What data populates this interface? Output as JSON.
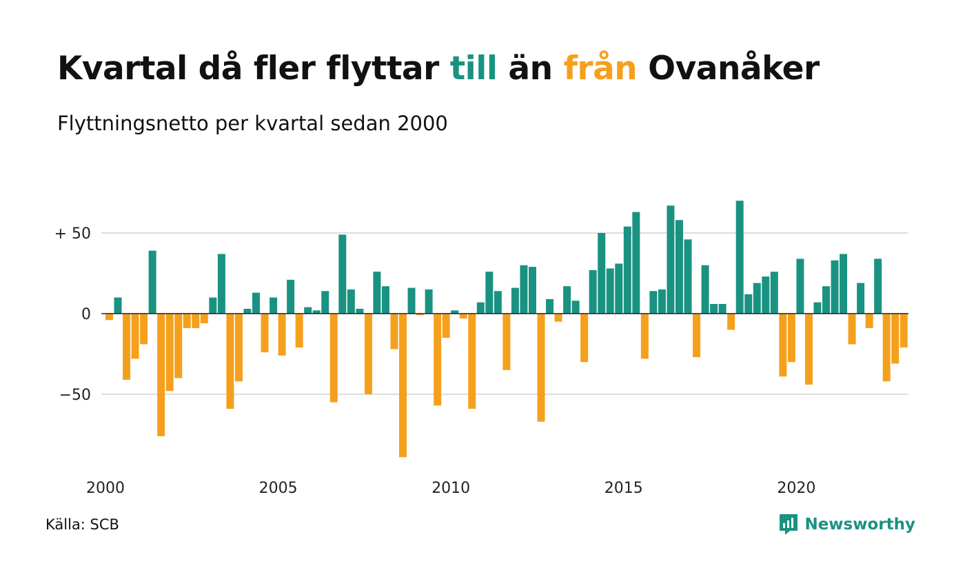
{
  "title": {
    "part1": "Kvartal då fler flyttar",
    "pos_word": "till",
    "part2": "än",
    "neg_word": "från",
    "part3": "Ovanåker"
  },
  "subtitle": "Flyttningsnetto per kvartal sedan 2000",
  "source": "Källa: SCB",
  "brand": {
    "name": "Newsworthy"
  },
  "colors": {
    "positive": "#1a9282",
    "negative": "#f5a01c",
    "grid": "#dddddd",
    "zero_line": "#222222"
  },
  "chart_data": {
    "type": "bar",
    "title": "Kvartal då fler flyttar till än från Ovanåker",
    "subtitle": "Flyttningsnetto per kvartal sedan 2000",
    "x_start": 2000,
    "periods_per_year": 4,
    "x_ticks": [
      "2000",
      "2005",
      "2010",
      "2015",
      "2020"
    ],
    "y_ticks": [
      {
        "value": 50,
        "label": "+ 50"
      },
      {
        "value": 0,
        "label": "0"
      },
      {
        "value": -50,
        "label": "−50"
      }
    ],
    "ylim": [
      -95,
      75
    ],
    "grid": true,
    "values": [
      -4,
      10,
      -41,
      -28,
      -19,
      39,
      -76,
      -48,
      -40,
      -9,
      -9,
      -6,
      10,
      37,
      -59,
      -42,
      3,
      13,
      -24,
      10,
      -26,
      21,
      -21,
      4,
      2,
      14,
      -55,
      49,
      15,
      3,
      -50,
      26,
      17,
      -22,
      -89,
      16,
      -1,
      15,
      -57,
      -15,
      2,
      -3,
      -59,
      7,
      26,
      14,
      -35,
      16,
      30,
      29,
      -67,
      9,
      -5,
      17,
      8,
      -30,
      27,
      50,
      28,
      31,
      54,
      63,
      -28,
      14,
      15,
      67,
      58,
      46,
      -27,
      30,
      6,
      6,
      -10,
      70,
      12,
      19,
      23,
      26,
      -39,
      -30,
      34,
      -44,
      7,
      17,
      33,
      37,
      -19,
      19,
      -9,
      34,
      -42,
      -31,
      -21
    ]
  }
}
